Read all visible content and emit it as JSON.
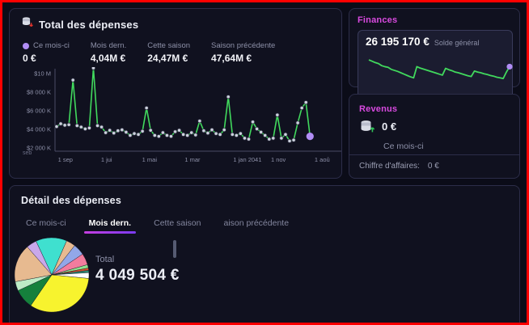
{
  "expenses_panel": {
    "title": "Total des dépenses",
    "stats": [
      {
        "label": "Ce mois-ci",
        "value": "0 €"
      },
      {
        "label": "Mois dern.",
        "value": "4,04M €"
      },
      {
        "label": "Cette saison",
        "value": "24,47M €"
      },
      {
        "label": "Saison précédente",
        "value": "47,64M €"
      }
    ]
  },
  "finances_panel": {
    "title": "Finances",
    "balance": "26 195 170 €",
    "balance_label": "Solde général"
  },
  "revenus_panel": {
    "title": "Revenus",
    "value": "0 €",
    "label": "Ce mois-ci",
    "footer_label": "Chiffre d'affaires:",
    "footer_value": "0 €"
  },
  "detail_panel": {
    "title": "Détail des dépenses",
    "tabs": [
      {
        "label": "Ce mois-ci",
        "active": false
      },
      {
        "label": "Mois dern.",
        "active": true
      },
      {
        "label": "Cette saison",
        "active": false
      },
      {
        "label": "aison précédente",
        "active": false
      }
    ],
    "total_label": "Total",
    "total_value": "4 049 504 €"
  },
  "colors": {
    "accent_magenta": "#d94ae0",
    "line_green": "#41d95d",
    "accent_purple": "#b18df5",
    "screenshot_border_red": "#fe0000"
  },
  "icons": {
    "expenses": "coins-stack-down-icon",
    "revenus": "coins-stack-up-icon"
  },
  "chart_data": [
    {
      "id": "expenses_line",
      "type": "line",
      "title": "Total des dépenses",
      "y_ticks": [
        "$10 M",
        "$8 000 K",
        "$6 000 K",
        "$4 000 K",
        "$2 000 K"
      ],
      "x_ticks": [
        "1 sep",
        "1 jui",
        "1 mai",
        "1 mar",
        "1 jan 2041",
        "1 nov",
        "1 aoû"
      ],
      "corner_label": "seb",
      "ylim_k": [
        2000,
        10000
      ],
      "values_k": [
        4300,
        4600,
        4450,
        4500,
        9300,
        4400,
        4250,
        4050,
        4150,
        10600,
        4400,
        4250,
        3650,
        3900,
        3600,
        3850,
        3950,
        3700,
        3350,
        3550,
        3450,
        3800,
        6300,
        3900,
        3350,
        3250,
        3650,
        3350,
        3250,
        3750,
        3900,
        3450,
        3350,
        3650,
        3400,
        4900,
        3850,
        3600,
        3950,
        3550,
        3450,
        3950,
        7500,
        3450,
        3350,
        3550,
        3050,
        2950,
        4800,
        4050,
        3700,
        3350,
        2950,
        3050,
        5550,
        3050,
        3450,
        2750,
        2850,
        4700,
        6300,
        6900,
        3250
      ],
      "line_color": "#41d95d",
      "marker_color": "#ccd1dd",
      "last_marker_color": "#b18df5",
      "grid": false,
      "legend": "none"
    },
    {
      "id": "finances_sparkline",
      "type": "line",
      "values": [
        88,
        84,
        80,
        77,
        71,
        68,
        66,
        60,
        57,
        54,
        50,
        46,
        42,
        38,
        35,
        68,
        64,
        61,
        58,
        55,
        52,
        49,
        46,
        43,
        63,
        59,
        56,
        52,
        50,
        47,
        44,
        41,
        39,
        55,
        52,
        50,
        47,
        45,
        42,
        40,
        37,
        35,
        33,
        52,
        68
      ],
      "line_color": "#41d95d",
      "end_dot_color": "#b18df5"
    },
    {
      "id": "expenses_pie",
      "type": "pie",
      "start_angle_deg": -25,
      "slices": [
        {
          "name": "turquoise",
          "color": "#3fe0cf",
          "pct": 13.5
        },
        {
          "name": "tan-small",
          "color": "#e7ba90",
          "pct": 4
        },
        {
          "name": "periwinkle",
          "color": "#92a7e8",
          "pct": 5
        },
        {
          "name": "pink",
          "color": "#f27c9e",
          "pct": 5
        },
        {
          "name": "light-green",
          "color": "#8fe08f",
          "pct": 1.5
        },
        {
          "name": "red",
          "color": "#d8502f",
          "pct": 1
        },
        {
          "name": "teal",
          "color": "#2e8c78",
          "pct": 1
        },
        {
          "name": "white",
          "color": "#ffffff",
          "pct": 2.5
        },
        {
          "name": "yellow",
          "color": "#f7f32e",
          "pct": 33
        },
        {
          "name": "dark-green",
          "color": "#15803c",
          "pct": 8.5
        },
        {
          "name": "pale-green",
          "color": "#bdebc6",
          "pct": 4
        },
        {
          "name": "tan-large",
          "color": "#e7ba90",
          "pct": 16.5
        },
        {
          "name": "plum",
          "color": "#c9a8ea",
          "pct": 4.5
        }
      ]
    }
  ]
}
